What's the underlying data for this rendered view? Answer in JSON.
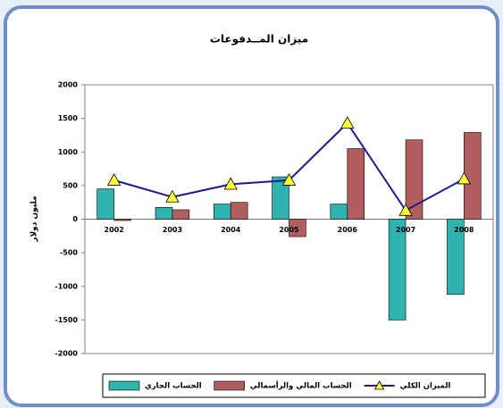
{
  "chart_data": {
    "type": "bar-line",
    "title": "ميزان المــدفوعات",
    "y_label": "مليون دولار",
    "categories": [
      "2002",
      "2003",
      "2004",
      "2005",
      "2006",
      "2007",
      "2008"
    ],
    "series": [
      {
        "name": "الحساب الجاري",
        "type": "bar",
        "color": "#2fb3ae",
        "values": [
          450,
          175,
          225,
          630,
          225,
          -1500,
          -1120
        ]
      },
      {
        "name": "الحساب المالي والرأسمالي",
        "type": "bar",
        "color": "#b25e5e",
        "values": [
          -20,
          140,
          250,
          -260,
          1050,
          1180,
          1290
        ]
      },
      {
        "name": "الميزان الكلي",
        "type": "line",
        "color": "#1c1c8f",
        "marker_color": "#ffff33",
        "values": [
          580,
          330,
          520,
          580,
          1430,
          130,
          600
        ]
      }
    ],
    "ylim": [
      -2000,
      2000
    ],
    "yticks": [
      -2000,
      -1500,
      -1000,
      -500,
      0,
      500,
      1000,
      1500,
      2000
    ],
    "grid": false,
    "legend": "bottom"
  }
}
